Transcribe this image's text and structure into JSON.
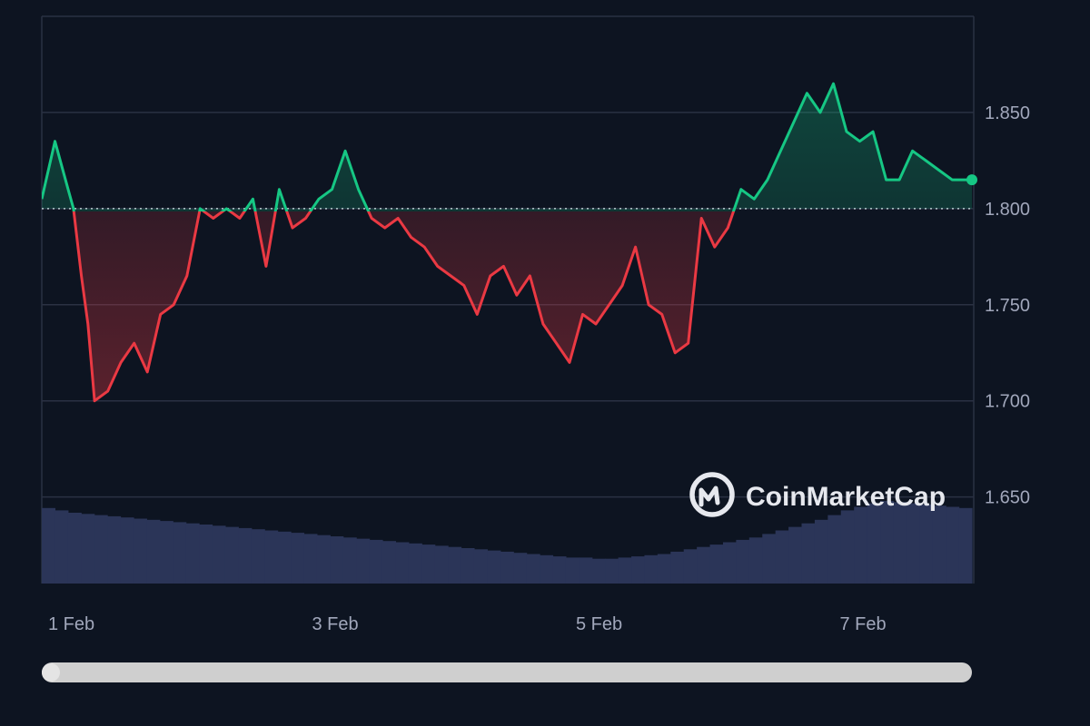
{
  "chart_data": {
    "type": "line",
    "title": "",
    "xlabel": "",
    "ylabel": "",
    "ylim": [
      1.605,
      1.9
    ],
    "y_ticks": [
      "1.650",
      "1.700",
      "1.750",
      "1.800",
      "1.850"
    ],
    "y_tick_values": [
      1.65,
      1.7,
      1.75,
      1.8,
      1.85
    ],
    "x_ticks": [
      "1 Feb",
      "3 Feb",
      "5 Feb",
      "7 Feb"
    ],
    "x_tick_values": [
      0.5,
      2.5,
      4.5,
      6.5
    ],
    "baseline": 1.8,
    "colors": {
      "up": "#16c784",
      "down": "#ea3943",
      "volume": "#2b3558",
      "grid": "#2a3143"
    },
    "watermark": "CoinMarketCap",
    "series": [
      {
        "x": [
          0.0,
          0.1,
          0.2,
          0.24,
          0.3,
          0.35,
          0.4,
          0.5,
          0.6,
          0.7,
          0.8,
          0.9,
          1.0,
          1.1,
          1.2,
          1.3,
          1.4,
          1.5,
          1.6,
          1.7,
          1.8,
          1.9,
          2.0,
          2.1,
          2.2,
          2.3,
          2.4,
          2.5,
          2.6,
          2.7,
          2.8,
          2.9,
          3.0,
          3.1,
          3.2,
          3.3,
          3.4,
          3.5,
          3.6,
          3.7,
          3.8,
          3.9,
          4.0,
          4.1,
          4.2,
          4.3,
          4.4,
          4.5,
          4.6,
          4.7,
          4.8,
          4.9,
          5.0,
          5.1,
          5.2,
          5.3,
          5.4,
          5.5,
          5.6,
          5.7,
          5.8,
          5.9,
          6.0,
          6.1,
          6.2,
          6.3,
          6.4,
          6.5,
          6.6,
          6.7,
          6.8,
          6.9,
          7.0,
          7.05
        ],
        "y": [
          1.805,
          1.835,
          1.81,
          1.8,
          1.765,
          1.74,
          1.7,
          1.705,
          1.72,
          1.73,
          1.715,
          1.745,
          1.75,
          1.765,
          1.8,
          1.795,
          1.8,
          1.795,
          1.805,
          1.77,
          1.81,
          1.79,
          1.795,
          1.805,
          1.81,
          1.83,
          1.81,
          1.795,
          1.79,
          1.795,
          1.785,
          1.78,
          1.77,
          1.765,
          1.76,
          1.745,
          1.765,
          1.77,
          1.755,
          1.765,
          1.74,
          1.73,
          1.72,
          1.745,
          1.74,
          1.75,
          1.76,
          1.78,
          1.75,
          1.745,
          1.725,
          1.73,
          1.795,
          1.78,
          1.79,
          1.81,
          1.805,
          1.815,
          1.83,
          1.845,
          1.86,
          1.85,
          1.865,
          1.84,
          1.835,
          1.84,
          1.815,
          1.815,
          1.83,
          1.825,
          1.82,
          1.815,
          1.815,
          1.815
        ]
      }
    ],
    "volume": [
      64,
      62,
      60,
      59,
      58,
      57,
      56,
      55,
      54,
      53,
      52,
      51,
      50,
      49,
      48,
      47,
      46,
      45,
      44,
      43,
      42,
      41,
      40,
      39,
      38,
      37,
      36,
      35,
      34,
      33,
      32,
      31,
      30,
      29,
      28,
      27,
      26,
      25,
      24,
      23,
      22,
      22,
      21,
      21,
      22,
      23,
      24,
      25,
      27,
      29,
      31,
      33,
      35,
      37,
      39,
      42,
      45,
      48,
      51,
      54,
      58,
      62,
      65,
      68,
      70,
      69,
      68,
      67,
      66,
      65,
      64
    ]
  }
}
